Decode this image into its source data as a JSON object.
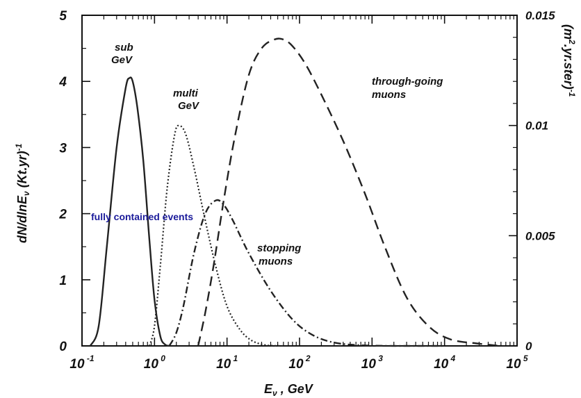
{
  "chart_data": {
    "type": "line",
    "xscale": "log",
    "xlim": [
      0.1,
      100000
    ],
    "ylim": [
      0,
      5
    ],
    "y2lim": [
      0,
      0.015
    ],
    "x_ticks": [
      {
        "base": "10",
        "exp": "-1"
      },
      {
        "base": "10",
        "exp": "0"
      },
      {
        "base": "10",
        "exp": "1"
      },
      {
        "base": "10",
        "exp": "2"
      },
      {
        "base": "10",
        "exp": "3"
      },
      {
        "base": "10",
        "exp": "4"
      },
      {
        "base": "10",
        "exp": "5"
      }
    ],
    "y_ticks": [
      "0",
      "1",
      "2",
      "3",
      "4",
      "5"
    ],
    "y2_ticks": [
      "0",
      "0.005",
      "0.01",
      "0.015"
    ],
    "xlabel": {
      "main": "E",
      "sub": "ν",
      "rest": " ,  GeV"
    },
    "ylabel": {
      "main": "dN/dlnE",
      "sub": "ν",
      "rest": " (Kt.yr)",
      "sup": "-1"
    },
    "y2label": {
      "main": "(m",
      "sup1": "2",
      "rest": ".yr.ster)",
      "sup2": "-1"
    },
    "annotations": {
      "sub_gev": [
        "sub",
        "GeV"
      ],
      "multi_gev": [
        "multi",
        "GeV"
      ],
      "fully_contained": "fully contained events",
      "stopping": [
        "stopping",
        "muons"
      ],
      "through_going": [
        "through-going",
        "muons"
      ]
    },
    "series": [
      {
        "id": "sub-gev",
        "style": "solid",
        "axis": "left",
        "x": [
          0.13,
          0.17,
          0.22,
          0.3,
          0.4,
          0.45,
          0.5,
          0.58,
          0.7,
          0.85,
          1.0,
          1.2,
          1.4,
          1.6
        ],
        "y": [
          0.0,
          0.3,
          1.5,
          3.0,
          3.9,
          4.05,
          4.0,
          3.6,
          2.8,
          1.6,
          0.7,
          0.15,
          0.02,
          0.0
        ]
      },
      {
        "id": "multi-gev",
        "style": "dotted",
        "axis": "left",
        "x": [
          0.85,
          1.0,
          1.2,
          1.5,
          1.9,
          2.2,
          2.7,
          3.5,
          5.0,
          7.0,
          10.0,
          15.0,
          22.0,
          35.0,
          60.0
        ],
        "y": [
          0.0,
          0.3,
          1.2,
          2.4,
          3.2,
          3.33,
          3.2,
          2.7,
          1.9,
          1.2,
          0.6,
          0.25,
          0.08,
          0.01,
          0.0
        ]
      },
      {
        "id": "stopping-muons",
        "style": "dashdot",
        "axis": "right",
        "x": [
          1.6,
          2.0,
          2.5,
          3.5,
          5.0,
          7.0,
          9.0,
          12.0,
          20.0,
          40.0,
          80.0,
          150.0,
          300.0,
          700.0,
          2000.0,
          10000.0
        ],
        "y": [
          0.0,
          0.0006,
          0.0018,
          0.0042,
          0.006,
          0.0066,
          0.0064,
          0.0057,
          0.0042,
          0.0025,
          0.0012,
          0.0005,
          0.00015,
          3e-05,
          0.0,
          0.0
        ]
      },
      {
        "id": "through-going-muons",
        "style": "dashed",
        "axis": "right",
        "x": [
          4.0,
          5.0,
          6.5,
          9.0,
          13.0,
          20.0,
          30.0,
          45.0,
          60.0,
          80.0,
          120.0,
          200.0,
          400.0,
          800.0,
          1500.0,
          3000.0,
          6000.0,
          12000.0,
          30000.0,
          60000.0
        ],
        "y": [
          0.0,
          0.0015,
          0.0036,
          0.0066,
          0.0096,
          0.0123,
          0.0135,
          0.0139,
          0.0139,
          0.0136,
          0.0128,
          0.0114,
          0.0093,
          0.0069,
          0.0045,
          0.0022,
          0.0009,
          0.0003,
          0.0001,
          0.0
        ]
      }
    ]
  }
}
